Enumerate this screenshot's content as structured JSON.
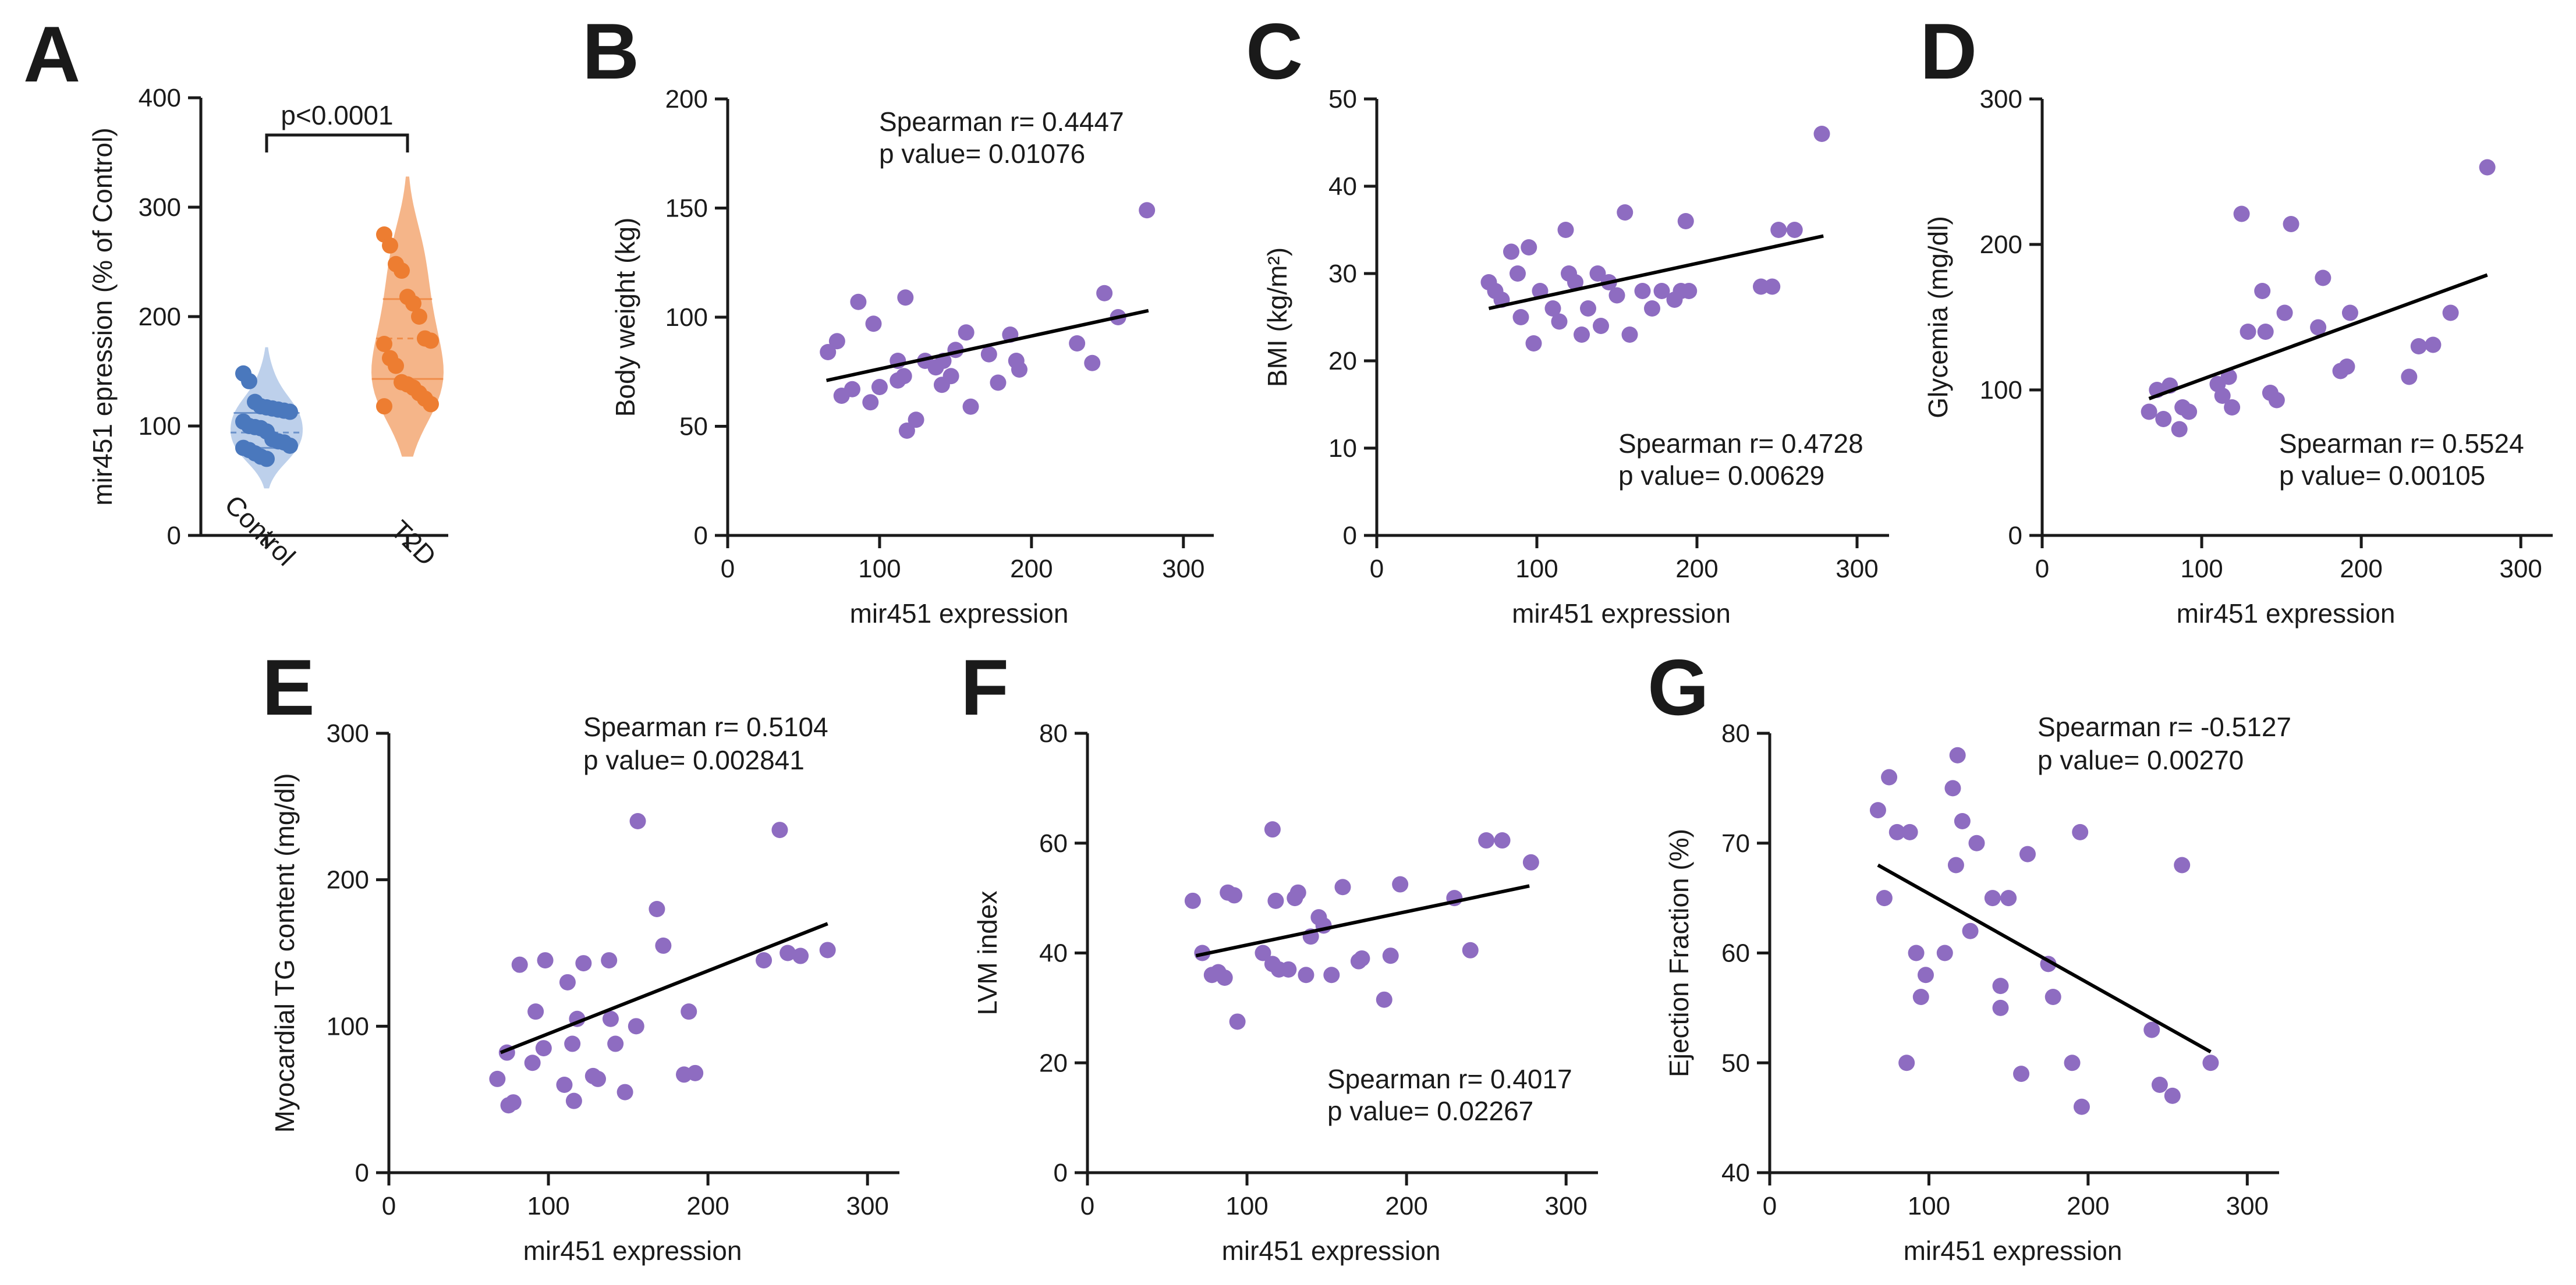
{
  "colors": {
    "scatter": "#8e6cc1",
    "line": "#000000",
    "axis": "#1a1a1a",
    "control_fill": "#b9cdea",
    "control_point": "#4a78bd",
    "t2d_fill": "#f4b183",
    "t2d_point": "#ed7d31"
  },
  "chart_data": [
    {
      "id": "A",
      "type": "violin",
      "panel_label": "A",
      "title": "",
      "ylabel": "mir451 epression (% of Control)",
      "ylim": [
        0,
        400
      ],
      "yticks": [
        0,
        100,
        200,
        300,
        400
      ],
      "significance": "p<0.0001",
      "series": [
        {
          "name": "Control",
          "values": [
            148,
            141,
            122,
            118,
            117,
            116,
            115,
            114,
            113,
            104,
            100,
            99,
            98,
            95,
            88,
            86,
            85,
            82,
            80,
            78,
            75,
            72,
            70
          ],
          "median": 94,
          "q1": 80,
          "q3": 112,
          "min": 43,
          "max": 172
        },
        {
          "name": "T2D",
          "values": [
            275,
            265,
            248,
            242,
            218,
            212,
            200,
            180,
            178,
            175,
            162,
            155,
            140,
            138,
            135,
            130,
            125,
            120,
            118
          ],
          "median": 180,
          "q1": 143,
          "q3": 216,
          "min": 72,
          "max": 328
        }
      ]
    },
    {
      "id": "B",
      "type": "scatter",
      "panel_label": "B",
      "xlabel": "mir451 expression",
      "ylabel": "Body weight (kg)",
      "xlim": [
        0,
        320
      ],
      "xticks": [
        0,
        100,
        200,
        300
      ],
      "ylim": [
        0,
        200
      ],
      "yticks": [
        0,
        50,
        100,
        150,
        200
      ],
      "annotation": [
        "Spearman r= 0.4447",
        "p value= 0.01076"
      ],
      "annotation_pos": "top-center",
      "fit": {
        "x": [
          65,
          277
        ],
        "y": [
          71,
          103
        ]
      },
      "points": [
        [
          66,
          84
        ],
        [
          72,
          89
        ],
        [
          75,
          64
        ],
        [
          82,
          67
        ],
        [
          86,
          107
        ],
        [
          94,
          61
        ],
        [
          96,
          97
        ],
        [
          100,
          68
        ],
        [
          112,
          71
        ],
        [
          112,
          80
        ],
        [
          116,
          73
        ],
        [
          117,
          109
        ],
        [
          118,
          48
        ],
        [
          124,
          53
        ],
        [
          130,
          80
        ],
        [
          137,
          77
        ],
        [
          141,
          69
        ],
        [
          142,
          80
        ],
        [
          147,
          73
        ],
        [
          150,
          85
        ],
        [
          157,
          93
        ],
        [
          160,
          59
        ],
        [
          172,
          83
        ],
        [
          178,
          70
        ],
        [
          186,
          92
        ],
        [
          190,
          80
        ],
        [
          192,
          76
        ],
        [
          230,
          88
        ],
        [
          240,
          79
        ],
        [
          248,
          111
        ],
        [
          257,
          100
        ],
        [
          276,
          149
        ]
      ]
    },
    {
      "id": "C",
      "type": "scatter",
      "panel_label": "C",
      "xlabel": "mir451 expression",
      "ylabel": "BMI (kg/m²)",
      "xlim": [
        0,
        320
      ],
      "xticks": [
        0,
        100,
        200,
        300
      ],
      "ylim": [
        0,
        50
      ],
      "yticks": [
        0,
        10,
        20,
        30,
        40,
        50
      ],
      "annotation": [
        "Spearman r= 0.4728",
        "p value= 0.00629"
      ],
      "annotation_pos": "bottom-right",
      "fit": {
        "x": [
          70,
          279
        ],
        "y": [
          26,
          34.3
        ]
      },
      "points": [
        [
          70,
          29
        ],
        [
          74,
          28
        ],
        [
          78,
          27
        ],
        [
          84,
          32.5
        ],
        [
          88,
          30
        ],
        [
          90,
          25
        ],
        [
          95,
          33
        ],
        [
          98,
          22
        ],
        [
          102,
          28
        ],
        [
          110,
          26
        ],
        [
          114,
          24.5
        ],
        [
          118,
          35
        ],
        [
          120,
          30
        ],
        [
          124,
          29
        ],
        [
          128,
          23
        ],
        [
          132,
          26
        ],
        [
          138,
          30
        ],
        [
          140,
          24
        ],
        [
          145,
          29
        ],
        [
          150,
          27.5
        ],
        [
          155,
          37
        ],
        [
          158,
          23
        ],
        [
          166,
          28
        ],
        [
          172,
          26
        ],
        [
          178,
          28
        ],
        [
          186,
          27
        ],
        [
          190,
          28
        ],
        [
          193,
          36
        ],
        [
          195,
          28
        ],
        [
          240,
          28.5
        ],
        [
          247,
          28.5
        ],
        [
          251,
          35
        ],
        [
          261,
          35
        ],
        [
          278,
          46
        ]
      ]
    },
    {
      "id": "D",
      "type": "scatter",
      "panel_label": "D",
      "xlabel": "mir451 expression",
      "ylabel": "Glycemia (mg/dl)",
      "xlim": [
        0,
        320
      ],
      "xticks": [
        0,
        100,
        200,
        300
      ],
      "ylim": [
        0,
        300
      ],
      "yticks": [
        0,
        100,
        200,
        300
      ],
      "annotation": [
        "Spearman r= 0.5524",
        "p value= 0.00105"
      ],
      "annotation_pos": "bottom-right",
      "fit": {
        "x": [
          67,
          279
        ],
        "y": [
          94,
          179
        ]
      },
      "points": [
        [
          67,
          85
        ],
        [
          72,
          100
        ],
        [
          76,
          80
        ],
        [
          80,
          103
        ],
        [
          86,
          73
        ],
        [
          88,
          88
        ],
        [
          92,
          85
        ],
        [
          110,
          104
        ],
        [
          113,
          96
        ],
        [
          117,
          109
        ],
        [
          119,
          88
        ],
        [
          125,
          221
        ],
        [
          129,
          140
        ],
        [
          138,
          168
        ],
        [
          140,
          140
        ],
        [
          143,
          98
        ],
        [
          147,
          93
        ],
        [
          152,
          153
        ],
        [
          156,
          214
        ],
        [
          173,
          143
        ],
        [
          176,
          177
        ],
        [
          187,
          113
        ],
        [
          191,
          116
        ],
        [
          193,
          153
        ],
        [
          230,
          109
        ],
        [
          236,
          130
        ],
        [
          245,
          131
        ],
        [
          256,
          153
        ],
        [
          279,
          253
        ]
      ]
    },
    {
      "id": "E",
      "type": "scatter",
      "panel_label": "E",
      "xlabel": "mir451 expression",
      "ylabel": "Myocardial TG content (mg/dl)",
      "xlim": [
        0,
        320
      ],
      "xticks": [
        0,
        100,
        200,
        300
      ],
      "ylim": [
        0,
        300
      ],
      "yticks": [
        0,
        100,
        200,
        300
      ],
      "annotation": [
        "Spearman r= 0.5104",
        "p value= 0.002841"
      ],
      "annotation_pos": "top-center",
      "fit": {
        "x": [
          70,
          275
        ],
        "y": [
          82,
          170
        ]
      },
      "points": [
        [
          68,
          64
        ],
        [
          74,
          82
        ],
        [
          75,
          46
        ],
        [
          78,
          48
        ],
        [
          82,
          142
        ],
        [
          90,
          75
        ],
        [
          92,
          110
        ],
        [
          97,
          85
        ],
        [
          98,
          145
        ],
        [
          110,
          60
        ],
        [
          112,
          130
        ],
        [
          115,
          88
        ],
        [
          116,
          49
        ],
        [
          118,
          105
        ],
        [
          122,
          143
        ],
        [
          128,
          66
        ],
        [
          131,
          64
        ],
        [
          138,
          145
        ],
        [
          139,
          105
        ],
        [
          142,
          88
        ],
        [
          148,
          55
        ],
        [
          155,
          100
        ],
        [
          156,
          240
        ],
        [
          168,
          180
        ],
        [
          172,
          155
        ],
        [
          185,
          67
        ],
        [
          188,
          110
        ],
        [
          192,
          68
        ],
        [
          235,
          145
        ],
        [
          245,
          234
        ],
        [
          250,
          150
        ],
        [
          258,
          148
        ],
        [
          275,
          152
        ]
      ]
    },
    {
      "id": "F",
      "type": "scatter",
      "panel_label": "F",
      "xlabel": "mir451 expression",
      "ylabel": "LVM index",
      "xlim": [
        0,
        320
      ],
      "xticks": [
        0,
        100,
        200,
        300
      ],
      "ylim": [
        0,
        80
      ],
      "yticks": [
        0,
        20,
        40,
        60,
        80
      ],
      "annotation": [
        "Spearman r= 0.4017",
        "p value= 0.02267"
      ],
      "annotation_pos": "bottom-right",
      "fit": {
        "x": [
          68,
          277
        ],
        "y": [
          39.5,
          52.2
        ]
      },
      "points": [
        [
          66,
          49.5
        ],
        [
          72,
          40
        ],
        [
          78,
          36
        ],
        [
          82,
          36.5
        ],
        [
          86,
          35.5
        ],
        [
          88,
          51
        ],
        [
          92,
          50.5
        ],
        [
          94,
          27.5
        ],
        [
          110,
          40
        ],
        [
          116,
          38
        ],
        [
          116,
          62.5
        ],
        [
          118,
          49.5
        ],
        [
          120,
          37
        ],
        [
          126,
          37
        ],
        [
          130,
          50
        ],
        [
          132,
          51
        ],
        [
          137,
          36
        ],
        [
          140,
          43
        ],
        [
          145,
          46.5
        ],
        [
          148,
          45
        ],
        [
          153,
          36
        ],
        [
          160,
          52
        ],
        [
          170,
          38.5
        ],
        [
          172,
          39
        ],
        [
          186,
          31.5
        ],
        [
          190,
          39.5
        ],
        [
          196,
          52.5
        ],
        [
          230,
          50
        ],
        [
          240,
          40.5
        ],
        [
          250,
          60.5
        ],
        [
          260,
          60.5
        ],
        [
          278,
          56.5
        ]
      ]
    },
    {
      "id": "G",
      "type": "scatter",
      "panel_label": "G",
      "xlabel": "mir451 expression",
      "ylabel": "Ejection Fraction (%)",
      "xlim": [
        0,
        320
      ],
      "xticks": [
        0,
        100,
        200,
        300
      ],
      "ylim": [
        40,
        80
      ],
      "yticks": [
        40,
        50,
        60,
        70,
        80
      ],
      "annotation": [
        "Spearman r= -0.5127",
        "p value= 0.00270"
      ],
      "annotation_pos": "top-center",
      "fit": {
        "x": [
          68,
          277
        ],
        "y": [
          68,
          51
        ]
      },
      "points": [
        [
          68,
          73
        ],
        [
          72,
          65
        ],
        [
          75,
          76
        ],
        [
          80,
          71
        ],
        [
          86,
          50
        ],
        [
          88,
          71
        ],
        [
          92,
          60
        ],
        [
          95,
          56
        ],
        [
          98,
          58
        ],
        [
          110,
          60
        ],
        [
          115,
          75
        ],
        [
          117,
          68
        ],
        [
          118,
          78
        ],
        [
          121,
          72
        ],
        [
          126,
          62
        ],
        [
          130,
          70
        ],
        [
          140,
          65
        ],
        [
          145,
          55
        ],
        [
          145,
          57
        ],
        [
          150,
          65
        ],
        [
          158,
          49
        ],
        [
          162,
          69
        ],
        [
          175,
          59
        ],
        [
          178,
          56
        ],
        [
          190,
          50
        ],
        [
          195,
          71
        ],
        [
          196,
          46
        ],
        [
          240,
          53
        ],
        [
          245,
          48
        ],
        [
          253,
          47
        ],
        [
          259,
          68
        ],
        [
          277,
          50
        ]
      ]
    }
  ]
}
